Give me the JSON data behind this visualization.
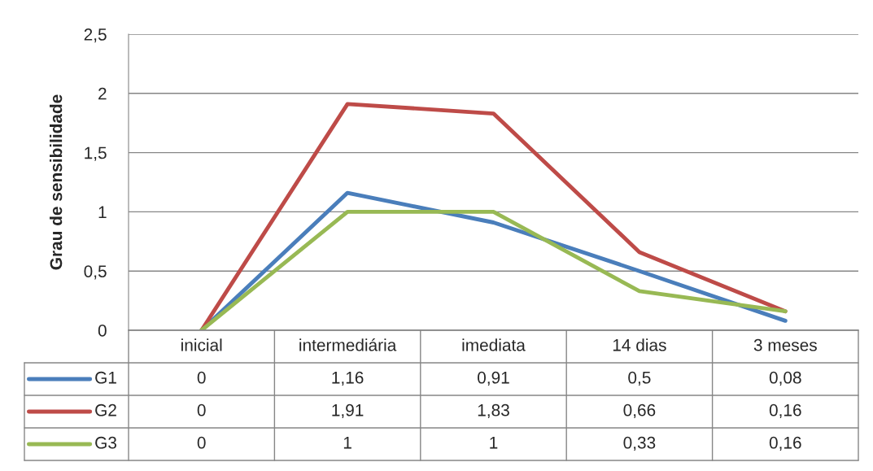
{
  "chart_data": {
    "type": "line",
    "ylabel": "Grau de sensibilidade",
    "categories": [
      "inicial",
      "intermediária",
      "imediata",
      "14 dias",
      "3 meses"
    ],
    "series": [
      {
        "name": "G1",
        "color": "#4a7ebb",
        "values": [
          0,
          1.16,
          0.91,
          0.5,
          0.08
        ],
        "value_labels": [
          "0",
          "1,16",
          "0,91",
          "0,5",
          "0,08"
        ]
      },
      {
        "name": "G2",
        "color": "#be4b48",
        "values": [
          0,
          1.91,
          1.83,
          0.66,
          0.16
        ],
        "value_labels": [
          "0",
          "1,91",
          "1,83",
          "0,66",
          "0,16"
        ]
      },
      {
        "name": "G3",
        "color": "#98b954",
        "values": [
          0,
          1,
          1,
          0.33,
          0.16
        ],
        "value_labels": [
          "0",
          "1",
          "1",
          "0,33",
          "0,16"
        ]
      }
    ],
    "ylim": [
      0,
      2.5
    ],
    "yticks": [
      0,
      {
        "value": 0.5,
        "label": "0,5"
      },
      1,
      {
        "value": 1.5,
        "label": "1,5"
      },
      2,
      {
        "value": 2.5,
        "label": "2,5"
      }
    ],
    "grid": "y",
    "legend": "bottom",
    "line_style": "solid",
    "marker": "none"
  }
}
